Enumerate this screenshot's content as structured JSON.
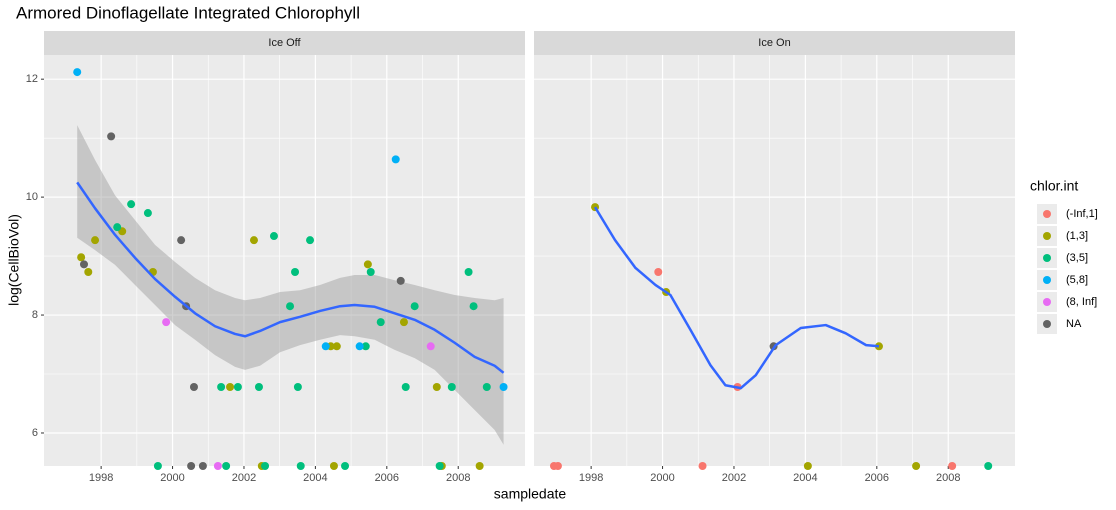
{
  "chart_data": {
    "type": "scatter",
    "title": "Armored Dinoflagellate Integrated Chlorophyll",
    "xlabel": "sampledate",
    "ylabel": "log(CellBioVol)",
    "legend_title": "chlor.int",
    "xlim": [
      1996.4,
      2009.87
    ],
    "ylim": [
      5.44,
      12.41
    ],
    "xticks": [
      1998,
      2000,
      2002,
      2004,
      2006,
      2008
    ],
    "yticks": [
      6,
      8,
      10,
      12
    ],
    "grid": true,
    "legend": [
      {
        "name": "(-Inf,1]",
        "color": "#F8766D"
      },
      {
        "name": "(1,3]",
        "color": "#A3A500"
      },
      {
        "name": "(3,5]",
        "color": "#00BF7D"
      },
      {
        "name": "(5,8]",
        "color": "#00B0F6"
      },
      {
        "name": "(8, Inf]",
        "color": "#E76BF3"
      },
      {
        "name": "NA",
        "color": "#636363"
      }
    ],
    "smooth_color": "#3366FF",
    "facets": [
      {
        "label": "Ice Off",
        "series": [
          {
            "x": [],
            "y": []
          },
          {
            "x": [
              1997.44,
              1997.64,
              1997.83,
              1998.59,
              1999.45,
              2001.61,
              2002.28,
              2002.5,
              2004.43,
              2004.6,
              2004.52,
              2005.47,
              2006.48,
              2007.4,
              2007.54,
              2008.6
            ],
            "y": [
              8.98,
              8.73,
              9.27,
              9.42,
              8.73,
              6.78,
              9.27,
              5.44,
              7.47,
              7.47,
              5.44,
              8.86,
              7.88,
              6.78,
              5.44,
              5.44
            ]
          },
          {
            "x": [
              1998.45,
              1998.84,
              1999.31,
              1999.59,
              2001.36,
              2001.5,
              2001.83,
              2002.42,
              2002.59,
              2002.84,
              2003.29,
              2003.43,
              2003.51,
              2003.59,
              2003.85,
              2004.83,
              2005.41,
              2005.55,
              2005.83,
              2006.53,
              2006.78,
              2007.48,
              2007.82,
              2008.29,
              2008.43,
              2008.8
            ],
            "y": [
              9.49,
              9.88,
              9.73,
              5.44,
              6.78,
              5.44,
              6.78,
              6.78,
              5.44,
              9.34,
              8.15,
              8.73,
              6.78,
              5.44,
              9.27,
              5.44,
              7.47,
              8.73,
              7.88,
              6.78,
              8.15,
              5.44,
              6.78,
              8.73,
              8.15,
              6.78
            ]
          },
          {
            "x": [
              1997.33,
              2006.25,
              2004.29,
              2005.24,
              2009.27
            ],
            "y": [
              12.12,
              10.64,
              7.47,
              7.47,
              6.78
            ]
          },
          {
            "x": [
              1999.82,
              2001.27,
              2007.23
            ],
            "y": [
              7.88,
              5.44,
              7.47
            ]
          },
          {
            "x": [
              1997.52,
              1998.28,
              2000.24,
              2000.38,
              2000.6,
              2000.52,
              2000.85,
              2006.39
            ],
            "y": [
              8.86,
              11.03,
              9.27,
              8.15,
              6.78,
              5.44,
              5.44,
              8.58
            ]
          }
        ],
        "smooth": {
          "x": [
            1997.33,
            1997.83,
            1998.39,
            1998.95,
            1999.51,
            2000.07,
            2000.63,
            2001.19,
            2001.75,
            2002.03,
            2002.45,
            2003.01,
            2003.57,
            2004.13,
            2004.69,
            2005.1,
            2005.66,
            2006.22,
            2006.78,
            2007.34,
            2007.9,
            2008.46,
            2009.02,
            2009.27
          ],
          "y": [
            10.25,
            9.81,
            9.36,
            8.97,
            8.61,
            8.31,
            8.03,
            7.81,
            7.68,
            7.64,
            7.73,
            7.88,
            7.97,
            8.07,
            8.15,
            8.17,
            8.14,
            8.03,
            7.92,
            7.75,
            7.53,
            7.29,
            7.14,
            7.02
          ],
          "upper": [
            11.22,
            10.63,
            10.03,
            9.61,
            9.19,
            8.9,
            8.63,
            8.42,
            8.29,
            8.25,
            8.29,
            8.39,
            8.42,
            8.51,
            8.63,
            8.68,
            8.68,
            8.59,
            8.51,
            8.42,
            8.34,
            8.29,
            8.25,
            8.29
          ],
          "lower": [
            9.31,
            9.1,
            8.85,
            8.51,
            8.17,
            7.83,
            7.58,
            7.32,
            7.12,
            7.07,
            7.14,
            7.37,
            7.49,
            7.58,
            7.66,
            7.64,
            7.58,
            7.41,
            7.27,
            7.07,
            6.73,
            6.39,
            6.05,
            5.8
          ]
        }
      },
      {
        "label": "Ice On",
        "series": [
          {
            "x": [
              1996.96,
              1997.07,
              1999.88,
              2001.12,
              2002.1,
              2008.11
            ],
            "y": [
              5.44,
              5.44,
              8.73,
              5.44,
              6.78,
              5.44
            ]
          },
          {
            "x": [
              1998.11,
              2000.1,
              2004.07,
              2006.06,
              2007.1
            ],
            "y": [
              9.83,
              8.39,
              5.44,
              7.47,
              5.44
            ]
          },
          {
            "x": [
              2009.12
            ],
            "y": [
              5.44
            ]
          },
          {
            "x": [],
            "y": []
          },
          {
            "x": [],
            "y": []
          },
          {
            "x": [
              2003.11
            ],
            "y": [
              7.47
            ]
          }
        ],
        "smooth": {
          "x": [
            1998.11,
            1998.67,
            1999.24,
            1999.8,
            2000.22,
            2000.78,
            2001.34,
            2001.76,
            2002.19,
            2002.61,
            2003.17,
            2003.87,
            2004.57,
            2005.13,
            2005.7,
            2006.06
          ],
          "y": [
            9.83,
            9.27,
            8.8,
            8.51,
            8.34,
            7.75,
            7.15,
            6.81,
            6.76,
            6.98,
            7.49,
            7.78,
            7.83,
            7.69,
            7.49,
            7.47
          ]
        }
      }
    ]
  }
}
